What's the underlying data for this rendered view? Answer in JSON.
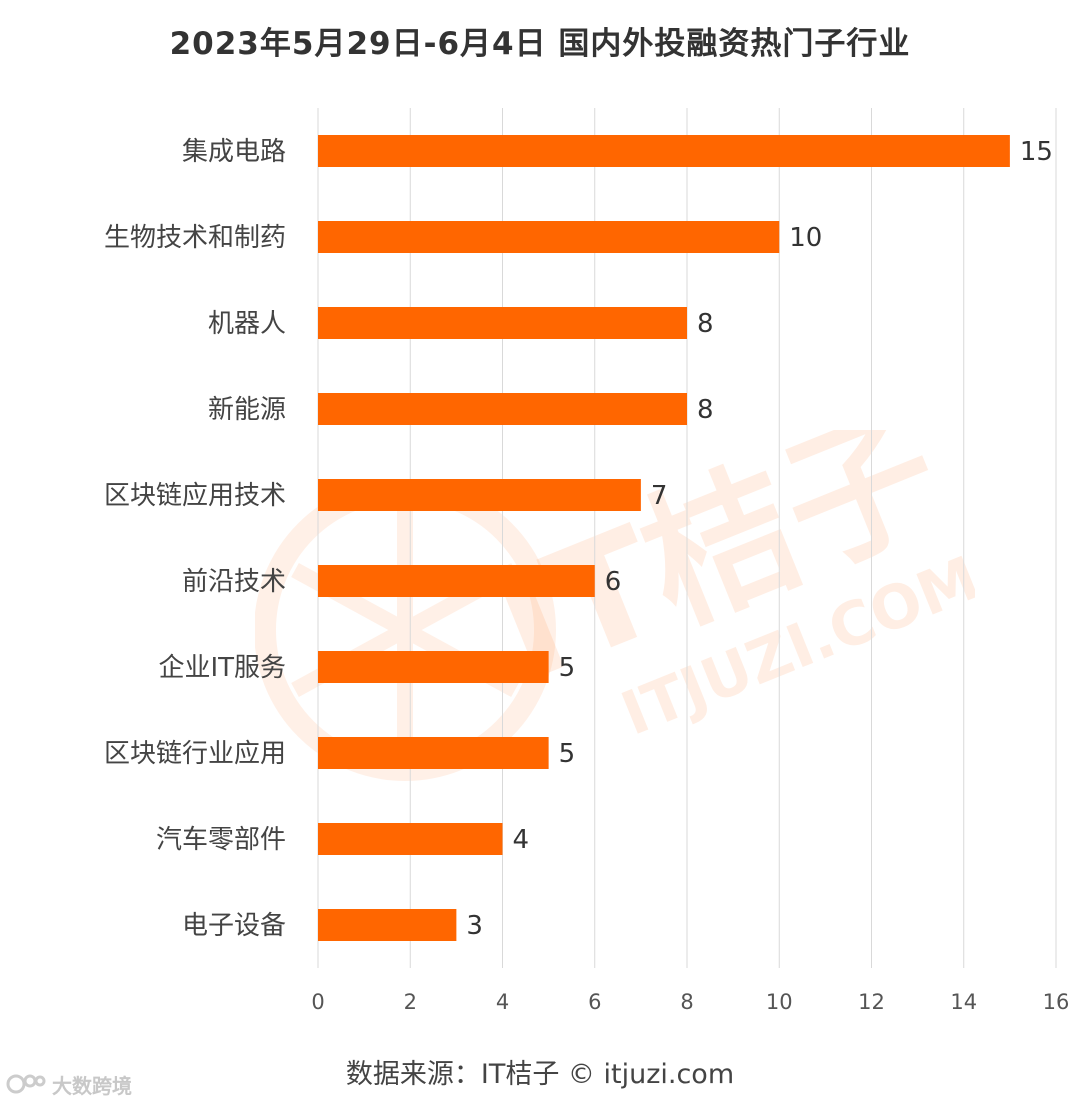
{
  "title": "2023年5月29日-6月4日 国内外投融资热门子行业",
  "source_text": "数据来源：IT桔子 © itjuzi.com",
  "watermark": {
    "main_text": "IT桔子",
    "sub_text": "ITJUZI.COM"
  },
  "corner_logo": {
    "text": "大数跨境"
  },
  "colors": {
    "bar": "#ff6600",
    "grid": "#d9d9d9",
    "text": "#444444",
    "watermark": "#ff6600"
  },
  "chart_data": {
    "type": "bar",
    "orientation": "horizontal",
    "title": "2023年5月29日-6月4日 国内外投融资热门子行业",
    "categories": [
      "集成电路",
      "生物技术和制药",
      "机器人",
      "新能源",
      "区块链应用技术",
      "前沿技术",
      "企业IT服务",
      "区块链行业应用",
      "汽车零部件",
      "电子设备"
    ],
    "values": [
      15,
      10,
      8,
      8,
      7,
      6,
      5,
      5,
      4,
      3
    ],
    "xlim": [
      0,
      16
    ],
    "xticks": [
      0,
      2,
      4,
      6,
      8,
      10,
      12,
      14,
      16
    ],
    "grid": true,
    "data_labels": true,
    "legend": "none"
  }
}
